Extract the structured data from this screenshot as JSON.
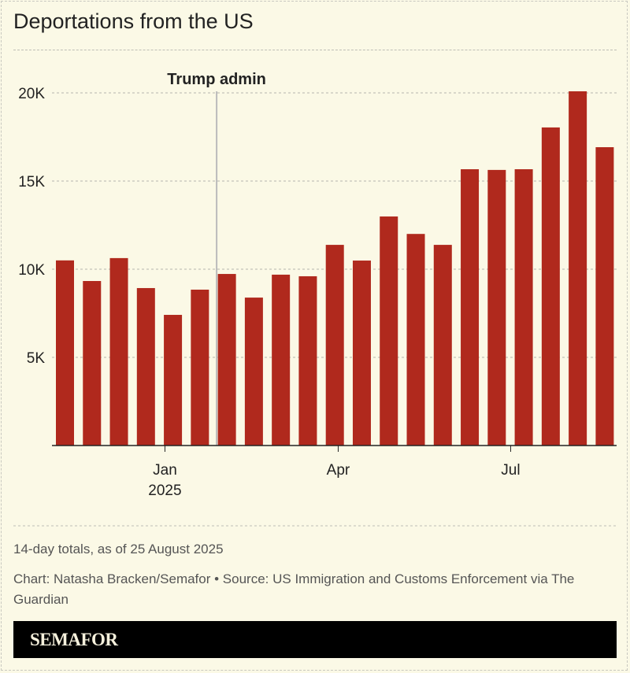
{
  "title": "Deportations from the US",
  "note": "14-day totals, as of 25 August 2025",
  "credit": "Chart: Natasha Bracken/Semafor • Source: US Immigration and Customs Enforcement via The Guardian",
  "logo": "SEMAFOR",
  "colors": {
    "bar": "#b0291d",
    "background": "#fbf9e6",
    "annotation_line": "#bbbbbb"
  },
  "chart_data": {
    "type": "bar",
    "title": "Deportations from the US",
    "xlabel": "",
    "ylabel": "",
    "ylim": [
      0,
      20000
    ],
    "yticks": [
      {
        "value": 5000,
        "label": "5K"
      },
      {
        "value": 10000,
        "label": "10K"
      },
      {
        "value": 15000,
        "label": "15K"
      },
      {
        "value": 20000,
        "label": "20K"
      }
    ],
    "xticks": [
      {
        "label": "Jan",
        "sublabel": "2025"
      },
      {
        "label": "Apr"
      },
      {
        "label": "Jul"
      }
    ],
    "grid": true,
    "annotation": {
      "label": "Trump admin"
    },
    "values": [
      10500,
      9330,
      10630,
      8930,
      7410,
      8840,
      9730,
      8390,
      9690,
      9600,
      11380,
      10490,
      12990,
      12000,
      11380,
      15670,
      15630,
      15670,
      18040,
      20090,
      16920
    ]
  }
}
